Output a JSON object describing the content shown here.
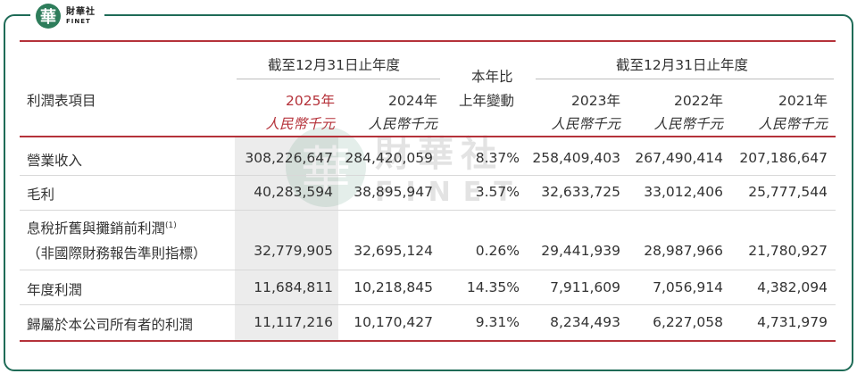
{
  "brand": {
    "mark": "華",
    "name_cn": "財華社",
    "name_en": "FINET"
  },
  "watermark": {
    "mark": "華",
    "name_cn": "財華社",
    "name_en": "FINET"
  },
  "header": {
    "item_label": "利潤表項目",
    "group_left": "截至12月31日止年度",
    "group_right": "截至12月31日止年度",
    "yoy_line1": "本年比",
    "yoy_line2": "上年變動",
    "years": [
      "2025年",
      "2024年",
      "2023年",
      "2022年",
      "2021年"
    ],
    "unit": "人民幣千元"
  },
  "rows": [
    {
      "label": "營業收入",
      "values": [
        "308,226,647",
        "284,420,059",
        "8.37%",
        "258,409,403",
        "267,490,414",
        "207,186,647"
      ]
    },
    {
      "label": "毛利",
      "values": [
        "40,283,594",
        "38,895,947",
        "3.57%",
        "32,633,725",
        "33,012,406",
        "25,777,544"
      ]
    },
    {
      "label": "息稅折舊與攤銷前利潤",
      "label_note": "(1)",
      "label2": "（非國際財務報告準則指標）",
      "values": [
        "32,779,905",
        "32,695,124",
        "0.26%",
        "29,441,939",
        "28,987,966",
        "21,780,927"
      ]
    },
    {
      "label": "年度利潤",
      "values": [
        "11,684,811",
        "10,218,845",
        "14.35%",
        "7,911,609",
        "7,056,914",
        "4,382,094"
      ]
    },
    {
      "label": "歸屬於本公司所有者的利潤",
      "values": [
        "11,117,216",
        "10,170,427",
        "9.31%",
        "8,234,493",
        "6,227,058",
        "4,731,979"
      ]
    }
  ],
  "colors": {
    "accent_red": "#b5323a",
    "brand_green": "#2e7d5b",
    "frame": "#1f6b57",
    "shade": "#ececec"
  }
}
